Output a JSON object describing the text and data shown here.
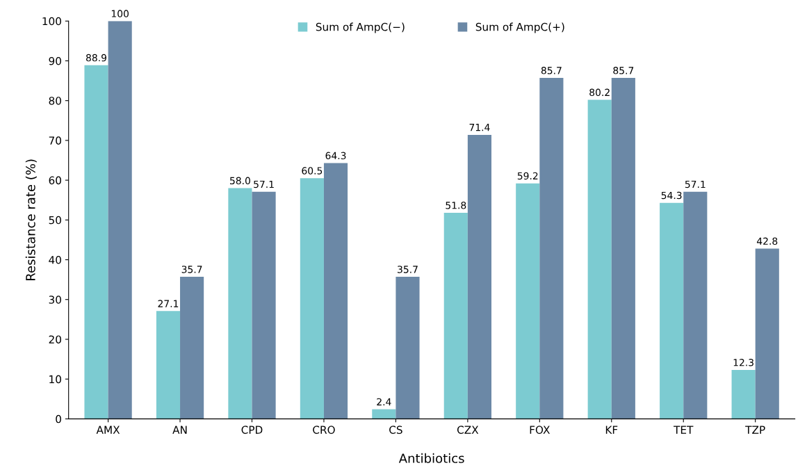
{
  "chart_data": {
    "type": "bar",
    "xlabel": "Antibiotics",
    "ylabel": "Resistance rate (%)",
    "categories": [
      "AMX",
      "AN",
      "CPD",
      "CRO",
      "CS",
      "CZX",
      "FOX",
      "KF",
      "TET",
      "TZP"
    ],
    "series": [
      {
        "name": "Sum of AmpC(−)",
        "color": "#7ccbd1",
        "values": [
          88.9,
          27.1,
          58.0,
          60.5,
          2.4,
          51.8,
          59.2,
          80.2,
          54.3,
          12.3
        ],
        "value_labels": [
          "88.9",
          "27.1",
          "58.0",
          "60.5",
          "2.4",
          "51.8",
          "59.2",
          "80.2",
          "54.3",
          "12.3"
        ]
      },
      {
        "name": "Sum of AmpC(+)",
        "color": "#6b88a6",
        "values": [
          100,
          35.7,
          57.1,
          64.3,
          35.7,
          71.4,
          85.7,
          85.7,
          57.1,
          42.8
        ],
        "value_labels": [
          "100",
          "35.7",
          "57.1",
          "64.3",
          "35.7",
          "71.4",
          "85.7",
          "85.7",
          "57.1",
          "42.8"
        ]
      }
    ],
    "ylim": [
      0,
      100
    ],
    "yticks": [
      0,
      10,
      20,
      30,
      40,
      50,
      60,
      70,
      80,
      90,
      100
    ],
    "grid": false,
    "legend": "top"
  }
}
